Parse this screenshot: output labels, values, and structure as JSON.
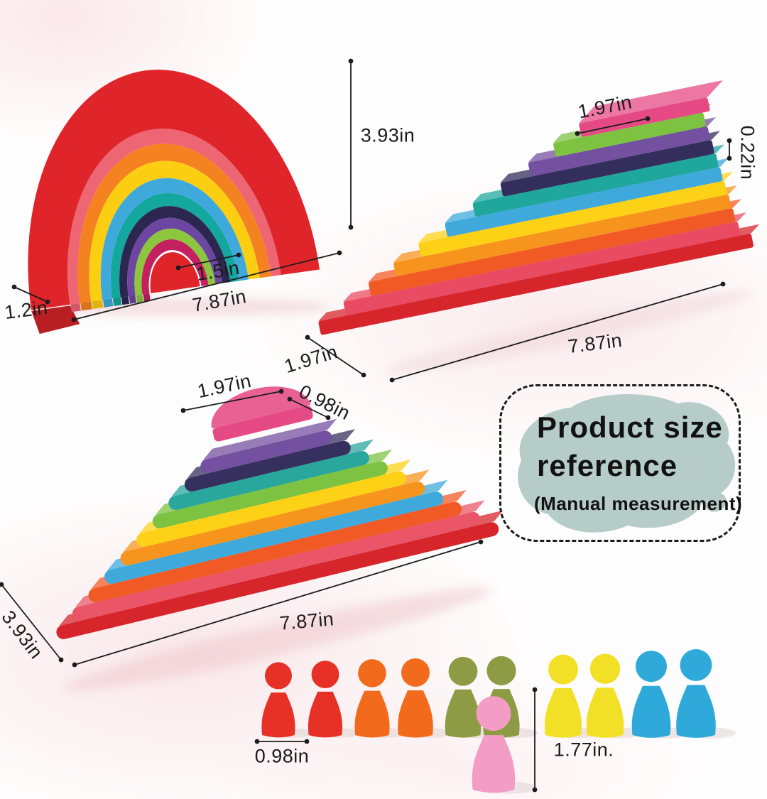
{
  "note_box": {
    "line1": "Product size",
    "line2": "reference",
    "subtitle": "(Manual measurement)",
    "splash_color": "#b6ccc8"
  },
  "measurements": {
    "arch_height": "3.93in",
    "arch_inner_width": "1.5in",
    "arch_width": "7.87in",
    "arch_depth": "1.2in",
    "stack_top_width": "1.97in",
    "stack_thickness": "0.22in",
    "stack_depth": "1.97in",
    "stack_length": "7.87in",
    "pyramid_top_length": "1.97in",
    "pyramid_top_depth": "0.98in",
    "pyramid_length": "7.87in",
    "pyramid_depth": "3.93in",
    "peg_width": "0.98in",
    "peg_height": "1.77in."
  },
  "toys": {
    "arch": {
      "ring_colors_outer_to_inner": [
        "#e0252a",
        "#ee6574",
        "#f58220",
        "#fcce12",
        "#3fa9dc",
        "#13a79d",
        "#2b2750",
        "#6c46a1",
        "#8cc63e",
        "#c41f5e"
      ],
      "center_color": "#e0252a"
    },
    "staircase": {
      "plank_colors_bottom_to_top": [
        "#d6252b",
        "#e94b62",
        "#f15a24",
        "#f7941d",
        "#fdd116",
        "#3fa9dc",
        "#1fa79d",
        "#332e5c",
        "#7450a0",
        "#7ec242",
        "#e64a84"
      ]
    },
    "pyramid": {
      "layer_colors_bottom_to_top": [
        "#d6252b",
        "#ea5668",
        "#f15a24",
        "#3fa9dc",
        "#f7941d",
        "#fdd116",
        "#7ec242",
        "#2aa79c",
        "#35305e",
        "#7450a0"
      ],
      "top_color": "#e64a84"
    },
    "peg_dolls": {
      "back_row_colors": [
        "#e73026",
        "#e73026",
        "#f26b1d",
        "#f26b1d",
        "#8d9c44",
        "#8d9c44",
        "#f2e027",
        "#f2e027",
        "#2ea9da",
        "#2ea9da"
      ],
      "front_color": "#f29cc6"
    }
  },
  "line_color": "#1c1c1c"
}
